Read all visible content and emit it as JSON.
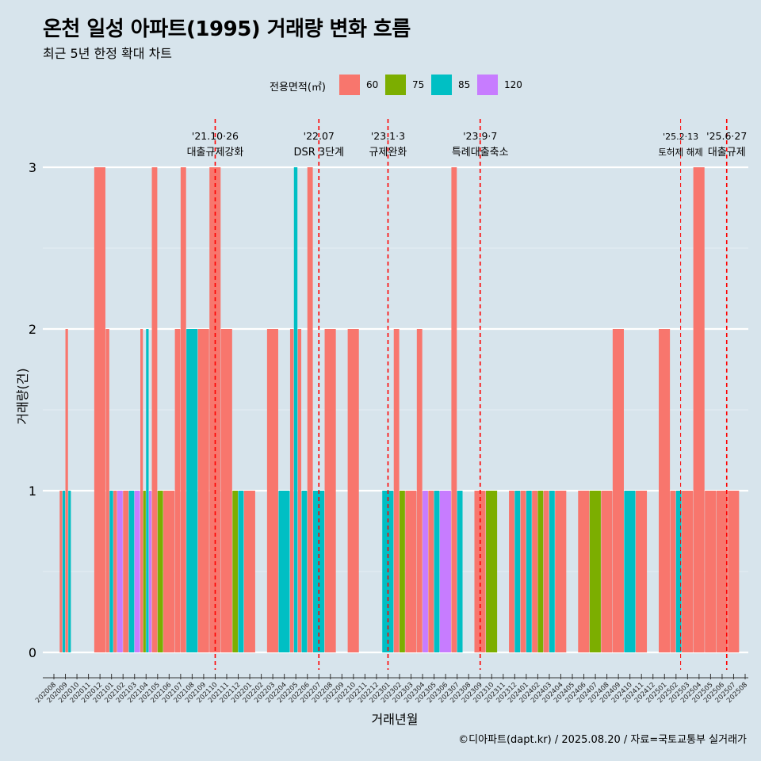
{
  "title": "온천 일성 아파트(1995) 거래량 변화 흐름",
  "subtitle": "최근 5년 한정 확대 차트",
  "caption": "©디아파트(dapt.kr) / 2025.08.20 / 자료=국토교통부 실거래가",
  "legend": {
    "title": "전용면적(㎡)",
    "items": [
      {
        "label": "60",
        "color": "#f8766d"
      },
      {
        "label": "75",
        "color": "#7cae00"
      },
      {
        "label": "85",
        "color": "#00bfc4"
      },
      {
        "label": "120",
        "color": "#c77cff"
      }
    ]
  },
  "chart_data": {
    "type": "bar",
    "title": "온천 일성 아파트(1995) 거래량 변화 흐름",
    "xlabel": "거래년월",
    "ylabel": "거래량(건)",
    "ylim": [
      0,
      3
    ],
    "yticks": [
      0,
      1,
      2,
      3
    ],
    "categories": [
      "202008",
      "202009",
      "202010",
      "202011",
      "202012",
      "202101",
      "202102",
      "202103",
      "202104",
      "202105",
      "202106",
      "202107",
      "202108",
      "202109",
      "202110",
      "202111",
      "202112",
      "202201",
      "202202",
      "202203",
      "202204",
      "202205",
      "202206",
      "202207",
      "202208",
      "202209",
      "202210",
      "202211",
      "202212",
      "202301",
      "202302",
      "202303",
      "202304",
      "202305",
      "202306",
      "202307",
      "202308",
      "202309",
      "202310",
      "202311",
      "202312",
      "202401",
      "202402",
      "202403",
      "202404",
      "202405",
      "202406",
      "202407",
      "202408",
      "202409",
      "202410",
      "202411",
      "202412",
      "202501",
      "202502",
      "202503",
      "202504",
      "202505",
      "202506",
      "202507",
      "202508"
    ],
    "bars": [
      {
        "month": "202009",
        "segments": [
          {
            "area": "60",
            "value": 1
          },
          {
            "area": "85",
            "value": 1
          },
          {
            "area": "60",
            "value": 2
          },
          {
            "area": "85",
            "value": 1
          }
        ]
      },
      {
        "month": "202012",
        "segments": [
          {
            "area": "60",
            "value": 3
          }
        ]
      },
      {
        "month": "202101",
        "segments": [
          {
            "area": "60",
            "value": 2
          },
          {
            "area": "85",
            "value": 1
          },
          {
            "area": "60",
            "value": 1
          }
        ]
      },
      {
        "month": "202102",
        "segments": [
          {
            "area": "120",
            "value": 1
          },
          {
            "area": "60",
            "value": 1
          }
        ]
      },
      {
        "month": "202103",
        "segments": [
          {
            "area": "85",
            "value": 1
          },
          {
            "area": "120",
            "value": 1
          }
        ]
      },
      {
        "month": "202104",
        "segments": [
          {
            "area": "60",
            "value": 2
          },
          {
            "area": "75",
            "value": 1
          },
          {
            "area": "85",
            "value": 2
          },
          {
            "area": "120",
            "value": 1
          }
        ]
      },
      {
        "month": "202105",
        "segments": [
          {
            "area": "60",
            "value": 3
          },
          {
            "area": "75",
            "value": 1
          }
        ]
      },
      {
        "month": "202106",
        "segments": [
          {
            "area": "60",
            "value": 1
          }
        ]
      },
      {
        "month": "202107",
        "segments": [
          {
            "area": "60",
            "value": 2
          },
          {
            "area": "60",
            "value": 3
          }
        ]
      },
      {
        "month": "202108",
        "segments": [
          {
            "area": "85",
            "value": 2
          }
        ]
      },
      {
        "month": "202109",
        "segments": [
          {
            "area": "60",
            "value": 2
          }
        ]
      },
      {
        "month": "202110",
        "segments": [
          {
            "area": "60",
            "value": 3
          }
        ]
      },
      {
        "month": "202111",
        "segments": [
          {
            "area": "60",
            "value": 2
          }
        ]
      },
      {
        "month": "202112",
        "segments": [
          {
            "area": "75",
            "value": 1
          },
          {
            "area": "85",
            "value": 1
          }
        ]
      },
      {
        "month": "202201",
        "segments": [
          {
            "area": "60",
            "value": 1
          }
        ]
      },
      {
        "month": "202203",
        "segments": [
          {
            "area": "60",
            "value": 2
          }
        ]
      },
      {
        "month": "202204",
        "segments": [
          {
            "area": "85",
            "value": 1
          }
        ]
      },
      {
        "month": "202205",
        "segments": [
          {
            "area": "60",
            "value": 2
          },
          {
            "area": "85",
            "value": 3
          },
          {
            "area": "60",
            "value": 2
          }
        ]
      },
      {
        "month": "202206",
        "segments": [
          {
            "area": "85",
            "value": 1
          },
          {
            "area": "60",
            "value": 3
          }
        ]
      },
      {
        "month": "202207",
        "segments": [
          {
            "area": "85",
            "value": 1
          }
        ]
      },
      {
        "month": "202208",
        "segments": [
          {
            "area": "60",
            "value": 2
          }
        ]
      },
      {
        "month": "202210",
        "segments": [
          {
            "area": "60",
            "value": 2
          }
        ]
      },
      {
        "month": "202301",
        "segments": [
          {
            "area": "85",
            "value": 1
          }
        ]
      },
      {
        "month": "202302",
        "segments": [
          {
            "area": "60",
            "value": 2
          },
          {
            "area": "75",
            "value": 1
          }
        ]
      },
      {
        "month": "202303",
        "segments": [
          {
            "area": "60",
            "value": 1
          }
        ]
      },
      {
        "month": "202304",
        "segments": [
          {
            "area": "60",
            "value": 2
          },
          {
            "area": "120",
            "value": 1
          }
        ]
      },
      {
        "month": "202305",
        "segments": [
          {
            "area": "60",
            "value": 1
          },
          {
            "area": "85",
            "value": 1
          }
        ]
      },
      {
        "month": "202306",
        "segments": [
          {
            "area": "120",
            "value": 1
          }
        ]
      },
      {
        "month": "202307",
        "segments": [
          {
            "area": "60",
            "value": 3
          },
          {
            "area": "85",
            "value": 1
          }
        ]
      },
      {
        "month": "202309",
        "segments": [
          {
            "area": "60",
            "value": 1
          }
        ]
      },
      {
        "month": "202310",
        "segments": [
          {
            "area": "75",
            "value": 1
          }
        ]
      },
      {
        "month": "202312",
        "segments": [
          {
            "area": "60",
            "value": 1
          },
          {
            "area": "85",
            "value": 1
          }
        ]
      },
      {
        "month": "202401",
        "segments": [
          {
            "area": "60",
            "value": 1
          },
          {
            "area": "85",
            "value": 1
          }
        ]
      },
      {
        "month": "202402",
        "segments": [
          {
            "area": "60",
            "value": 1
          },
          {
            "area": "75",
            "value": 1
          }
        ]
      },
      {
        "month": "202403",
        "segments": [
          {
            "area": "60",
            "value": 1
          },
          {
            "area": "85",
            "value": 1
          }
        ]
      },
      {
        "month": "202404",
        "segments": [
          {
            "area": "60",
            "value": 1
          }
        ]
      },
      {
        "month": "202406",
        "segments": [
          {
            "area": "60",
            "value": 1
          }
        ]
      },
      {
        "month": "202407",
        "segments": [
          {
            "area": "75",
            "value": 1
          }
        ]
      },
      {
        "month": "202408",
        "segments": [
          {
            "area": "60",
            "value": 1
          }
        ]
      },
      {
        "month": "202409",
        "segments": [
          {
            "area": "60",
            "value": 2
          }
        ]
      },
      {
        "month": "202410",
        "segments": [
          {
            "area": "85",
            "value": 1
          }
        ]
      },
      {
        "month": "202411",
        "segments": [
          {
            "area": "60",
            "value": 1
          }
        ]
      },
      {
        "month": "202501",
        "segments": [
          {
            "area": "60",
            "value": 2
          }
        ]
      },
      {
        "month": "202502",
        "segments": [
          {
            "area": "60",
            "value": 1
          },
          {
            "area": "85",
            "value": 1
          }
        ]
      },
      {
        "month": "202503",
        "segments": [
          {
            "area": "60",
            "value": 1
          }
        ]
      },
      {
        "month": "202504",
        "segments": [
          {
            "area": "60",
            "value": 3
          }
        ]
      },
      {
        "month": "202505",
        "segments": [
          {
            "area": "60",
            "value": 1
          }
        ]
      },
      {
        "month": "202506",
        "segments": [
          {
            "area": "60",
            "value": 1
          }
        ]
      },
      {
        "month": "202507",
        "segments": [
          {
            "area": "60",
            "value": 1
          }
        ]
      }
    ],
    "events": [
      {
        "date": "'21.10·26",
        "label": "대출규제강화",
        "position": 14.0
      },
      {
        "date": "'22.07",
        "label": "DSR 3단계",
        "position": 23.0
      },
      {
        "date": "'23.1·3",
        "label": "규제완화",
        "position": 29.0
      },
      {
        "date": "'23.9·7",
        "label": "특례대출축소",
        "position": 37.0
      },
      {
        "date": "'25.2·13",
        "label": "토허제 해제",
        "position": 54.4
      },
      {
        "date": "'25.6·27",
        "label": "대출규제",
        "position": 58.4
      }
    ]
  }
}
